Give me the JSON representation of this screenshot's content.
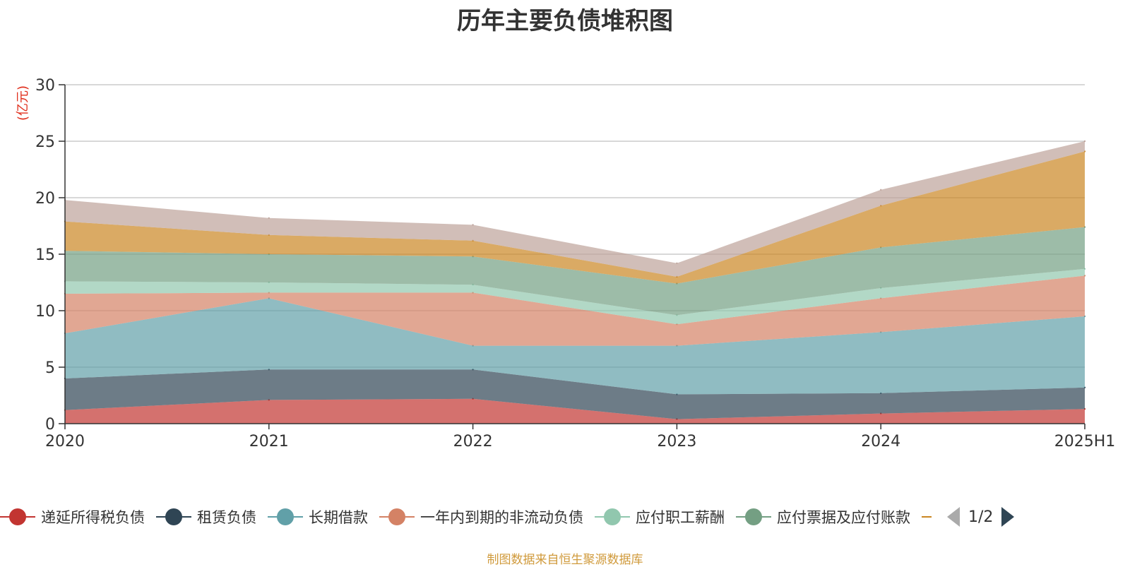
{
  "chart_data": {
    "type": "area",
    "title": "历年主要负债堆积图",
    "unit_label": "(亿元)",
    "categories": [
      "2020",
      "2021",
      "2022",
      "2023",
      "2024",
      "2025H1"
    ],
    "ylim": [
      0,
      30
    ],
    "yticks": [
      0,
      5,
      10,
      15,
      20,
      25,
      30
    ],
    "stacked": true,
    "grid": true,
    "legend_position": "bottom",
    "series": [
      {
        "name": "递延所得税负债",
        "color": "#c23531",
        "values": [
          1.2,
          2.1,
          2.2,
          0.4,
          0.9,
          1.3
        ]
      },
      {
        "name": "租赁负债",
        "color": "#2f4554",
        "values": [
          2.8,
          2.7,
          2.6,
          2.2,
          1.8,
          1.9
        ]
      },
      {
        "name": "长期借款",
        "color": "#61a0a8",
        "values": [
          4.0,
          6.3,
          2.1,
          4.3,
          5.4,
          6.3
        ]
      },
      {
        "name": "一年内到期的非流动负债",
        "color": "#d48265",
        "values": [
          3.5,
          0.5,
          4.7,
          1.9,
          3.0,
          3.6
        ]
      },
      {
        "name": "应付职工薪酬",
        "color": "#91c7ae",
        "values": [
          1.1,
          0.9,
          0.7,
          0.8,
          0.9,
          0.6
        ]
      },
      {
        "name": "应付票据及应付账款",
        "color": "#749f83",
        "values": [
          2.7,
          2.5,
          2.5,
          2.8,
          3.6,
          3.7
        ]
      },
      {
        "name": "",
        "color": "#ca8622",
        "values": [
          2.6,
          1.7,
          1.4,
          0.6,
          3.7,
          6.7
        ]
      },
      {
        "name": "",
        "color": "#bda29a",
        "values": [
          1.9,
          1.5,
          1.4,
          1.2,
          1.4,
          0.9
        ]
      }
    ]
  },
  "legend": {
    "page_indicator": "1/2",
    "visible_count": 6
  },
  "source_note": "制图数据来自恒生聚源数据库"
}
